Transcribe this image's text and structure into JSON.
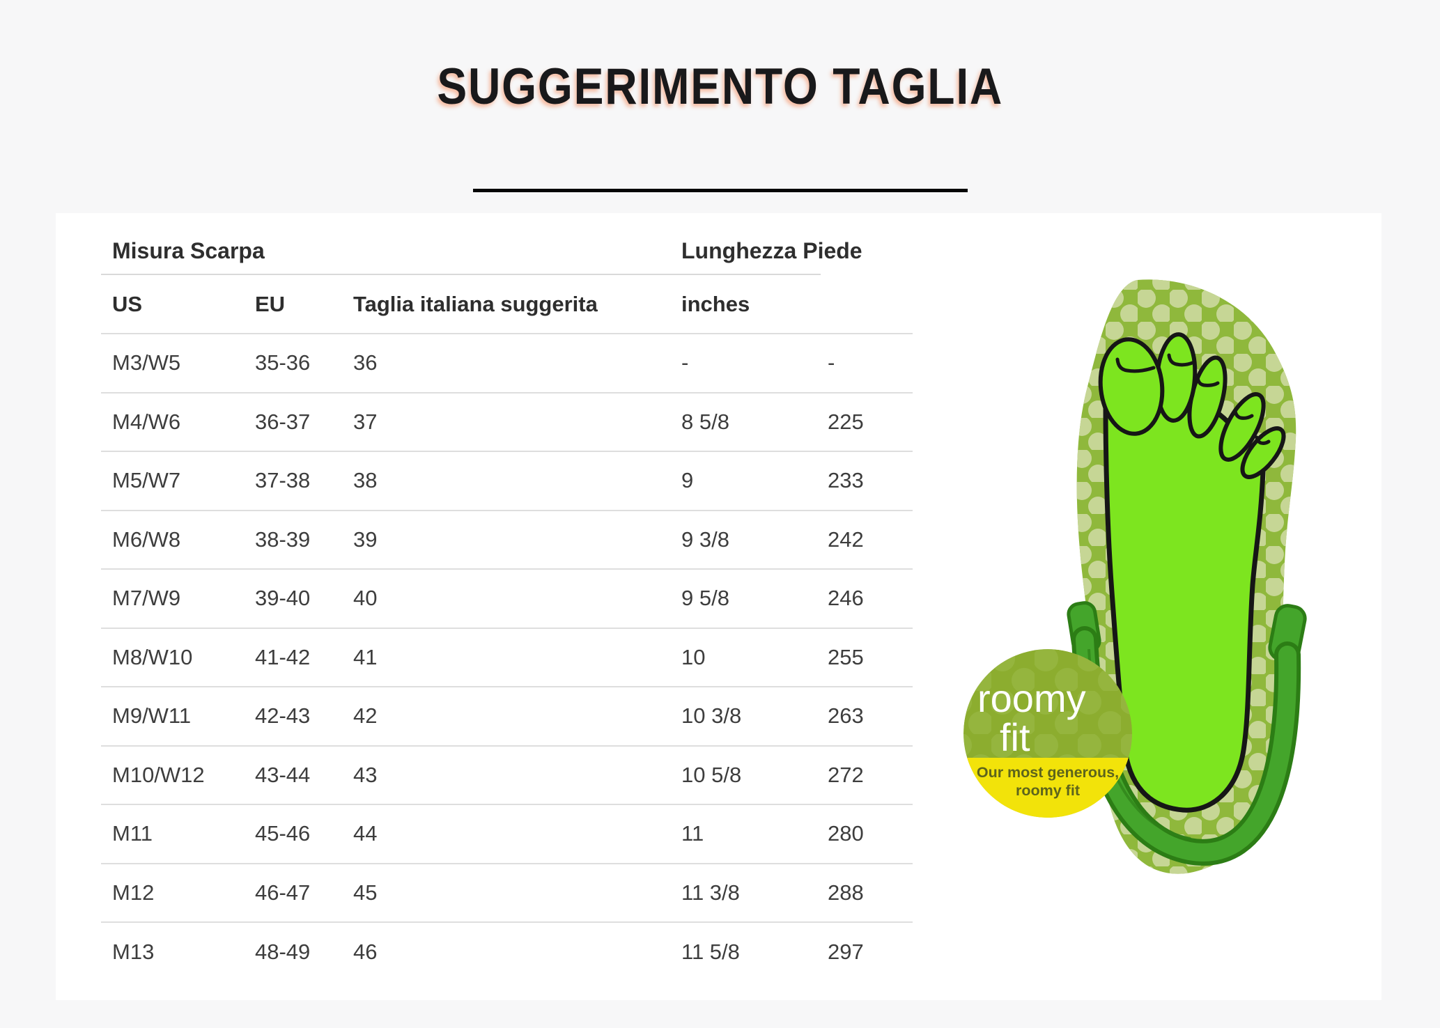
{
  "page": {
    "title": "SUGGERIMENTO TAGLIA",
    "background_color": "#f7f7f8",
    "card_color": "#ffffff",
    "divider_color": "#060606"
  },
  "size_table": {
    "group_headers": {
      "shoe_size": "Misura Scarpa",
      "foot_length": "Lunghezza Piede"
    },
    "columns": [
      "US",
      "EU",
      "Taglia italiana suggerita",
      "inches",
      ""
    ],
    "rows": [
      [
        "M3/W5",
        "35-36",
        "36",
        "-",
        "-"
      ],
      [
        "M4/W6",
        "36-37",
        "37",
        "8 5/8",
        "225"
      ],
      [
        "M5/W7",
        "37-38",
        "38",
        "9",
        "233"
      ],
      [
        "M6/W8",
        "38-39",
        "39",
        "9 3/8",
        "242"
      ],
      [
        "M7/W9",
        "39-40",
        "40",
        "9 5/8",
        "246"
      ],
      [
        "M8/W10",
        "41-42",
        "41",
        "10",
        "255"
      ],
      [
        "M9/W11",
        "42-43",
        "42",
        "10 3/8",
        "263"
      ],
      [
        "M10/W12",
        "43-44",
        "43",
        "10 5/8",
        "272"
      ],
      [
        "M11",
        "45-46",
        "44",
        "11",
        "280"
      ],
      [
        "M12",
        "46-47",
        "45",
        "11 3/8",
        "288"
      ],
      [
        "M13",
        "48-49",
        "46",
        "11 5/8",
        "297"
      ]
    ]
  },
  "illustration": {
    "badge": {
      "line1": "roomy",
      "line2": "fit",
      "subtitle1": "Our most generous,",
      "subtitle2": "roomy fit",
      "top_color": "#8cad2f",
      "dot_color": "#9cbb4b",
      "bottom_color": "#f2e30a",
      "title_color": "#ffffff",
      "subtitle_color": "#5d641c"
    },
    "foot_color": "#7de51f",
    "sole_color": "#8fb83c",
    "sole_dot_color": "#c6d695",
    "strap_color": "#44a52b",
    "strap_edge_color": "#2c7d15",
    "outline_color": "#161616"
  }
}
